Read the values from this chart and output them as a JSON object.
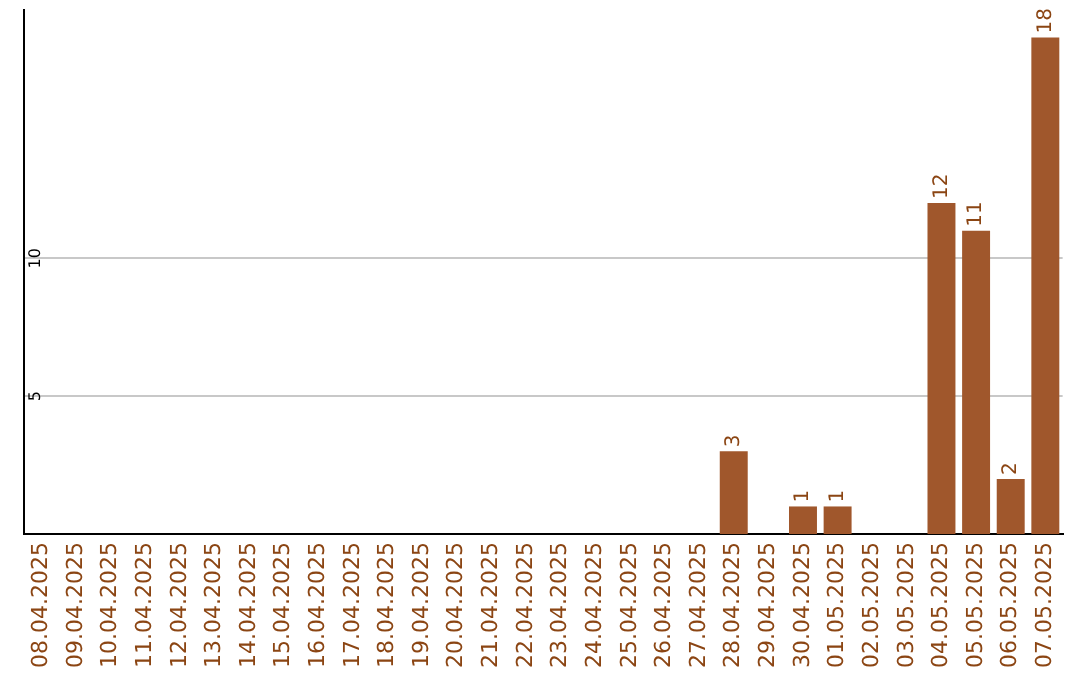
{
  "chart_data": {
    "type": "bar",
    "categories": [
      "08.04.2025",
      "09.04.2025",
      "10.04.2025",
      "11.04.2025",
      "12.04.2025",
      "13.04.2025",
      "14.04.2025",
      "15.04.2025",
      "16.04.2025",
      "17.04.2025",
      "18.04.2025",
      "19.04.2025",
      "20.04.2025",
      "21.04.2025",
      "22.04.2025",
      "23.04.2025",
      "24.04.2025",
      "25.04.2025",
      "26.04.2025",
      "27.04.2025",
      "28.04.2025",
      "29.04.2025",
      "30.04.2025",
      "01.05.2025",
      "02.05.2025",
      "03.05.2025",
      "04.05.2025",
      "05.05.2025",
      "06.05.2025",
      "07.05.2025"
    ],
    "values": [
      0,
      0,
      0,
      0,
      0,
      0,
      0,
      0,
      0,
      0,
      0,
      0,
      0,
      0,
      0,
      0,
      0,
      0,
      0,
      0,
      3,
      0,
      1,
      1,
      0,
      0,
      12,
      11,
      2,
      18
    ],
    "value_labels": [
      null,
      null,
      null,
      null,
      null,
      null,
      null,
      null,
      null,
      null,
      null,
      null,
      null,
      null,
      null,
      null,
      null,
      null,
      null,
      null,
      "3",
      null,
      "1",
      "1",
      null,
      null,
      "12",
      "11",
      "2",
      "18"
    ],
    "color": "#a0572c",
    "ylim": [
      0,
      19
    ],
    "yticks": [
      5,
      10
    ],
    "grid": "y",
    "legend": false
  }
}
